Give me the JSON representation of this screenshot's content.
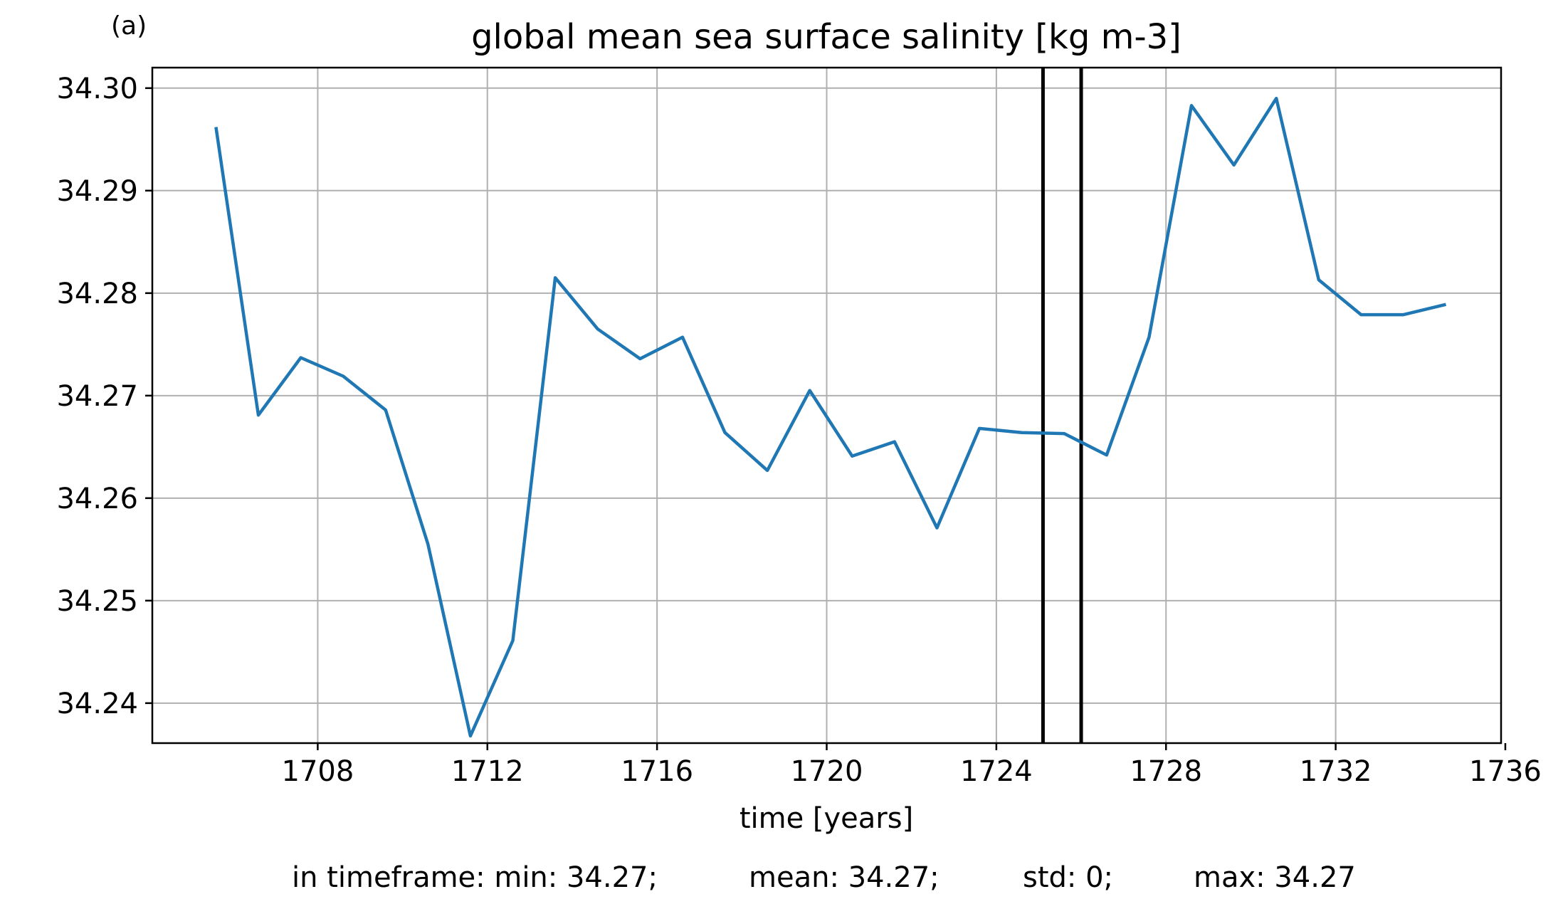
{
  "panel_label": "(a)",
  "chart_data": {
    "type": "line",
    "title": "global mean sea surface salinity [kg m-3]",
    "xlabel": "time [years]",
    "ylabel": "",
    "xlim": [
      1704.1,
      1735.9
    ],
    "ylim": [
      34.2361,
      34.302
    ],
    "xticks": [
      1708,
      1712,
      1716,
      1720,
      1724,
      1728,
      1732,
      1736
    ],
    "xtick_labels": [
      "1708",
      "1712",
      "1716",
      "1720",
      "1724",
      "1728",
      "1732",
      "1736"
    ],
    "yticks": [
      34.24,
      34.25,
      34.26,
      34.27,
      34.28,
      34.29,
      34.3
    ],
    "ytick_labels": [
      "34.24",
      "34.25",
      "34.26",
      "34.27",
      "34.28",
      "34.29",
      "34.30"
    ],
    "grid": true,
    "vlines": [
      1725.1,
      1726.0
    ],
    "series": [
      {
        "color": "#1f77b4",
        "x": [
          1705.6,
          1706.6,
          1707.6,
          1708.6,
          1709.6,
          1710.6,
          1711.6,
          1712.6,
          1713.6,
          1714.6,
          1715.6,
          1716.6,
          1717.6,
          1718.6,
          1719.6,
          1720.6,
          1721.6,
          1722.6,
          1723.6,
          1724.6,
          1725.6,
          1726.6,
          1727.6,
          1728.6,
          1729.6,
          1730.6,
          1731.6,
          1732.6,
          1733.6,
          1734.6
        ],
        "y": [
          34.2962,
          34.2681,
          34.2737,
          34.2719,
          34.2686,
          34.2555,
          34.2368,
          34.2461,
          34.2815,
          34.2765,
          34.2736,
          34.2757,
          34.2664,
          34.2627,
          34.2705,
          34.2641,
          34.2655,
          34.2571,
          34.2668,
          34.2664,
          34.2663,
          34.2642,
          34.2757,
          34.2983,
          34.2925,
          34.299,
          34.2813,
          34.2779,
          34.2779,
          34.2789
        ]
      }
    ]
  },
  "stats": {
    "prefix": "in timeframe: min: 34.27;",
    "mean": "mean: 34.27;",
    "std": "std: 0;",
    "max": "max: 34.27"
  }
}
